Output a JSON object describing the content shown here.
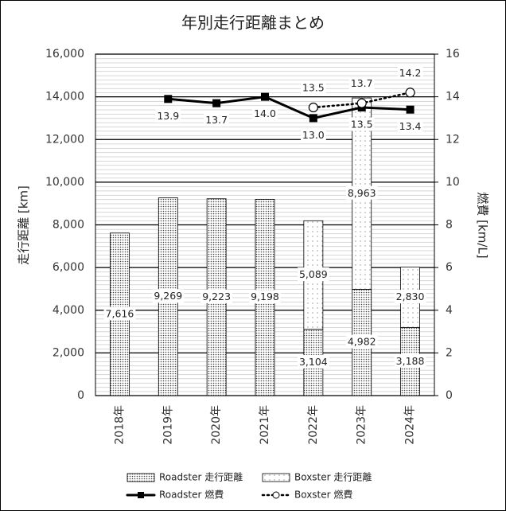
{
  "chart_data": {
    "type": "bar",
    "title": "年別走行距離まとめ",
    "y_label": "走行距離 [km]",
    "y2_label": "燃費 [km/L]",
    "categories": [
      "2018年",
      "2019年",
      "2020年",
      "2021年",
      "2022年",
      "2023年",
      "2024年"
    ],
    "series": [
      {
        "name": "Roadster 走行距離",
        "type": "bar",
        "color": "#444444",
        "values": [
          7616,
          9269,
          9223,
          9198,
          3104,
          4982,
          3188
        ],
        "value_labels": [
          "7,616",
          "9,269",
          "9,223",
          "9,198",
          "3,104",
          "4,982",
          "3,188"
        ]
      },
      {
        "name": "Boxster 走行距離",
        "type": "bar",
        "color": "#666666",
        "values": [
          null,
          null,
          null,
          null,
          5089,
          8963,
          2830
        ],
        "value_labels": [
          null,
          null,
          null,
          null,
          "5,089",
          "8,963",
          "2,830"
        ]
      },
      {
        "name": "Roadster 燃費",
        "type": "line",
        "axis": "y2",
        "color": "#000000",
        "dashed": false,
        "values": [
          null,
          13.9,
          13.7,
          14.0,
          13.0,
          13.5,
          13.4
        ],
        "value_labels": [
          null,
          "13.9",
          "13.7",
          "14.0",
          "13.0",
          "13.5",
          "13.4"
        ]
      },
      {
        "name": "Boxster 燃費",
        "type": "line",
        "axis": "y2",
        "color": "#000000",
        "dashed": true,
        "values": [
          null,
          null,
          null,
          null,
          13.5,
          13.7,
          14.2
        ],
        "value_labels": [
          null,
          null,
          null,
          null,
          "13.5",
          "13.7",
          "14.2"
        ]
      }
    ],
    "ylim": [
      0,
      16000
    ],
    "yticks": [
      0,
      {
        "value": 2000,
        "label": "2,000"
      },
      {
        "value": 4000,
        "label": "4,000"
      },
      {
        "value": 6000,
        "label": "6,000"
      },
      {
        "value": 8000,
        "label": "8,000"
      },
      {
        "value": 10000,
        "label": "10,000"
      },
      {
        "value": 12000,
        "label": "12,000"
      },
      {
        "value": 14000,
        "label": "14,000"
      },
      {
        "value": 16000,
        "label": "16,000"
      }
    ],
    "y2lim": [
      0,
      16
    ],
    "y2ticks": [
      0,
      2,
      4,
      6,
      8,
      10,
      12,
      14,
      16
    ],
    "grid": true,
    "legend": "bottom"
  }
}
